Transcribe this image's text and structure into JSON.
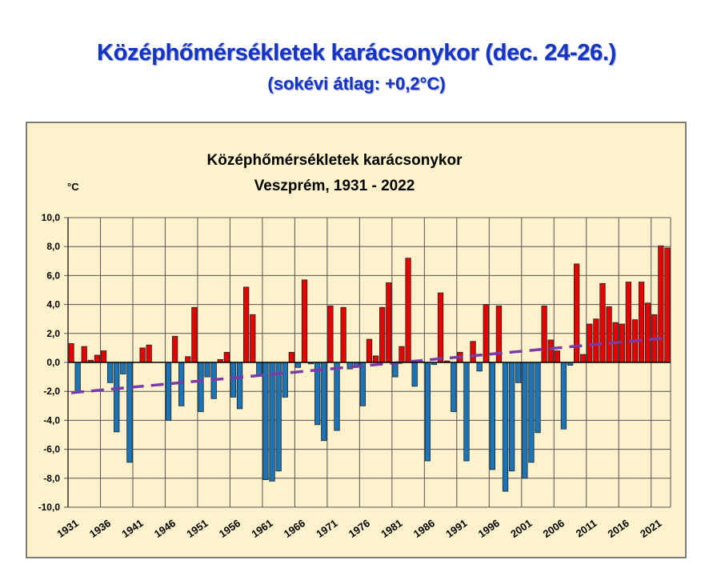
{
  "header": {
    "title": "Középhőmérsékletek karácsonykor (dec. 24-26.)",
    "subtitle": "(sokévi átlag: +0,2°C)"
  },
  "colors": {
    "positive": "#e60000",
    "negative": "#1c74b8",
    "trend": "#7a3aa8",
    "background": "#fdf2cc",
    "title": "#1434c8"
  },
  "chart_data": {
    "type": "bar",
    "title": "Középhőmérsékletek karácsonykor",
    "subtitle": "Veszprém, 1931 - 2022",
    "ylabel": "°C",
    "xlabel": "",
    "ylim": [
      -10,
      10
    ],
    "yticks": [
      "10,0",
      "8,0",
      "6,0",
      "4,0",
      "2,0",
      "0,0",
      "-2,0",
      "-4,0",
      "-6,0",
      "-8,0",
      "-10,0"
    ],
    "xtick_labels": [
      "1931",
      "1936",
      "1941",
      "1946",
      "1951",
      "1956",
      "1961",
      "1966",
      "1971",
      "1976",
      "1981",
      "1986",
      "1991",
      "1996",
      "2001",
      "2006",
      "2011",
      "2016",
      "2021"
    ],
    "grid": true,
    "first_year": 1931,
    "values": [
      1.3,
      -2.1,
      1.1,
      0.15,
      0.5,
      0.8,
      -1.4,
      -4.8,
      -0.8,
      -6.9,
      0.0,
      1.0,
      1.2,
      0,
      0,
      -4.0,
      1.8,
      -3.0,
      0.4,
      3.8,
      -3.4,
      -1.0,
      -2.5,
      0.2,
      0.7,
      -2.4,
      -3.2,
      5.2,
      3.3,
      -0.9,
      -8.1,
      -8.2,
      -7.5,
      -2.4,
      0.7,
      -0.35,
      5.7,
      -0.1,
      -4.3,
      -5.4,
      3.9,
      -4.7,
      3.8,
      -0.45,
      -0.3,
      -3.0,
      1.6,
      0.45,
      3.8,
      5.5,
      -1.0,
      1.1,
      7.2,
      -1.65,
      0.05,
      -6.8,
      -0.15,
      4.8,
      0.1,
      -3.4,
      0.7,
      -6.8,
      1.45,
      -0.6,
      4.0,
      -7.4,
      3.9,
      -8.9,
      -7.5,
      -1.4,
      -8.0,
      -6.9,
      -4.85,
      3.9,
      1.55,
      0.8,
      -4.6,
      -0.2,
      6.8,
      0.55,
      2.65,
      3.0,
      5.45,
      3.85,
      2.75,
      2.65,
      5.55,
      2.95,
      5.55,
      4.1,
      3.3,
      8.05,
      7.9
    ],
    "trend": {
      "style": "dashed",
      "start": -2.1,
      "end": 1.7
    }
  }
}
